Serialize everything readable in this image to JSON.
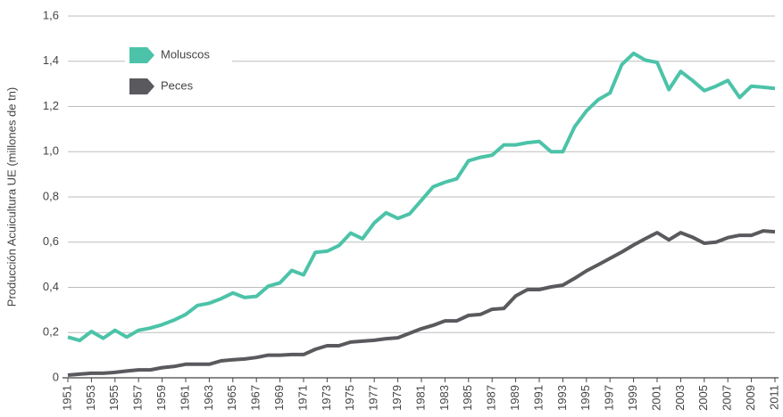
{
  "chart_data": {
    "type": "line",
    "y_label": "Producción Acuicultura UE (millones de tn)",
    "x": [
      1951,
      1952,
      1953,
      1954,
      1955,
      1956,
      1957,
      1958,
      1959,
      1960,
      1961,
      1962,
      1963,
      1964,
      1965,
      1966,
      1967,
      1968,
      1969,
      1970,
      1971,
      1972,
      1973,
      1974,
      1975,
      1976,
      1977,
      1978,
      1979,
      1980,
      1981,
      1982,
      1983,
      1984,
      1985,
      1986,
      1987,
      1988,
      1989,
      1990,
      1991,
      1992,
      1993,
      1994,
      1995,
      1996,
      1997,
      1998,
      1999,
      2000,
      2001,
      2002,
      2003,
      2004,
      2005,
      2006,
      2007,
      2008,
      2009,
      2010,
      2011
    ],
    "xlim": [
      1951,
      2011
    ],
    "xticks": [
      1951,
      1953,
      1955,
      1957,
      1959,
      1961,
      1963,
      1965,
      1967,
      1969,
      1971,
      1973,
      1975,
      1977,
      1979,
      1981,
      1983,
      1985,
      1987,
      1989,
      1991,
      1993,
      1995,
      1997,
      1999,
      2001,
      2003,
      2005,
      2007,
      2009,
      2011
    ],
    "ylim": [
      0,
      1.6
    ],
    "yticks": [
      0,
      {
        "value": 0.2,
        "label": "0,2"
      },
      {
        "value": 0.4,
        "label": "0,4"
      },
      {
        "value": 0.6,
        "label": "0,6"
      },
      {
        "value": 0.8,
        "label": "0,8"
      },
      {
        "value": 1.0,
        "label": "1,0"
      },
      {
        "value": 1.2,
        "label": "1,2"
      },
      {
        "value": 1.4,
        "label": "1,4"
      },
      {
        "value": 1.6,
        "label": "1,6"
      }
    ],
    "grid": true,
    "legend": "upper left",
    "series": [
      {
        "name": "Moluscos",
        "color": "#4cc3a8",
        "values": [
          0.18,
          0.165,
          0.205,
          0.175,
          0.21,
          0.18,
          0.21,
          0.22,
          0.235,
          0.255,
          0.28,
          0.32,
          0.33,
          0.35,
          0.375,
          0.355,
          0.36,
          0.405,
          0.42,
          0.475,
          0.455,
          0.555,
          0.56,
          0.585,
          0.64,
          0.615,
          0.685,
          0.73,
          0.705,
          0.725,
          0.785,
          0.845,
          0.865,
          0.88,
          0.96,
          0.975,
          0.985,
          1.03,
          1.03,
          1.04,
          1.045,
          1.0,
          1.0,
          1.11,
          1.18,
          1.23,
          1.26,
          1.385,
          1.435,
          1.405,
          1.395,
          1.275,
          1.355,
          1.315,
          1.27,
          1.29,
          1.315,
          1.24,
          1.29,
          1.285,
          1.28
        ]
      },
      {
        "name": "Peces",
        "color": "#5a5a5e",
        "values": [
          0.012,
          0.016,
          0.02,
          0.02,
          0.024,
          0.03,
          0.035,
          0.035,
          0.045,
          0.05,
          0.06,
          0.06,
          0.06,
          0.075,
          0.08,
          0.083,
          0.09,
          0.1,
          0.1,
          0.103,
          0.103,
          0.126,
          0.142,
          0.142,
          0.158,
          0.162,
          0.166,
          0.173,
          0.177,
          0.197,
          0.217,
          0.232,
          0.252,
          0.252,
          0.276,
          0.28,
          0.303,
          0.307,
          0.362,
          0.39,
          0.39,
          0.402,
          0.41,
          0.44,
          0.473,
          0.5,
          0.528,
          0.556,
          0.587,
          0.615,
          0.642,
          0.61,
          0.642,
          0.622,
          0.595,
          0.6,
          0.62,
          0.63,
          0.63,
          0.65,
          0.646
        ]
      }
    ]
  }
}
